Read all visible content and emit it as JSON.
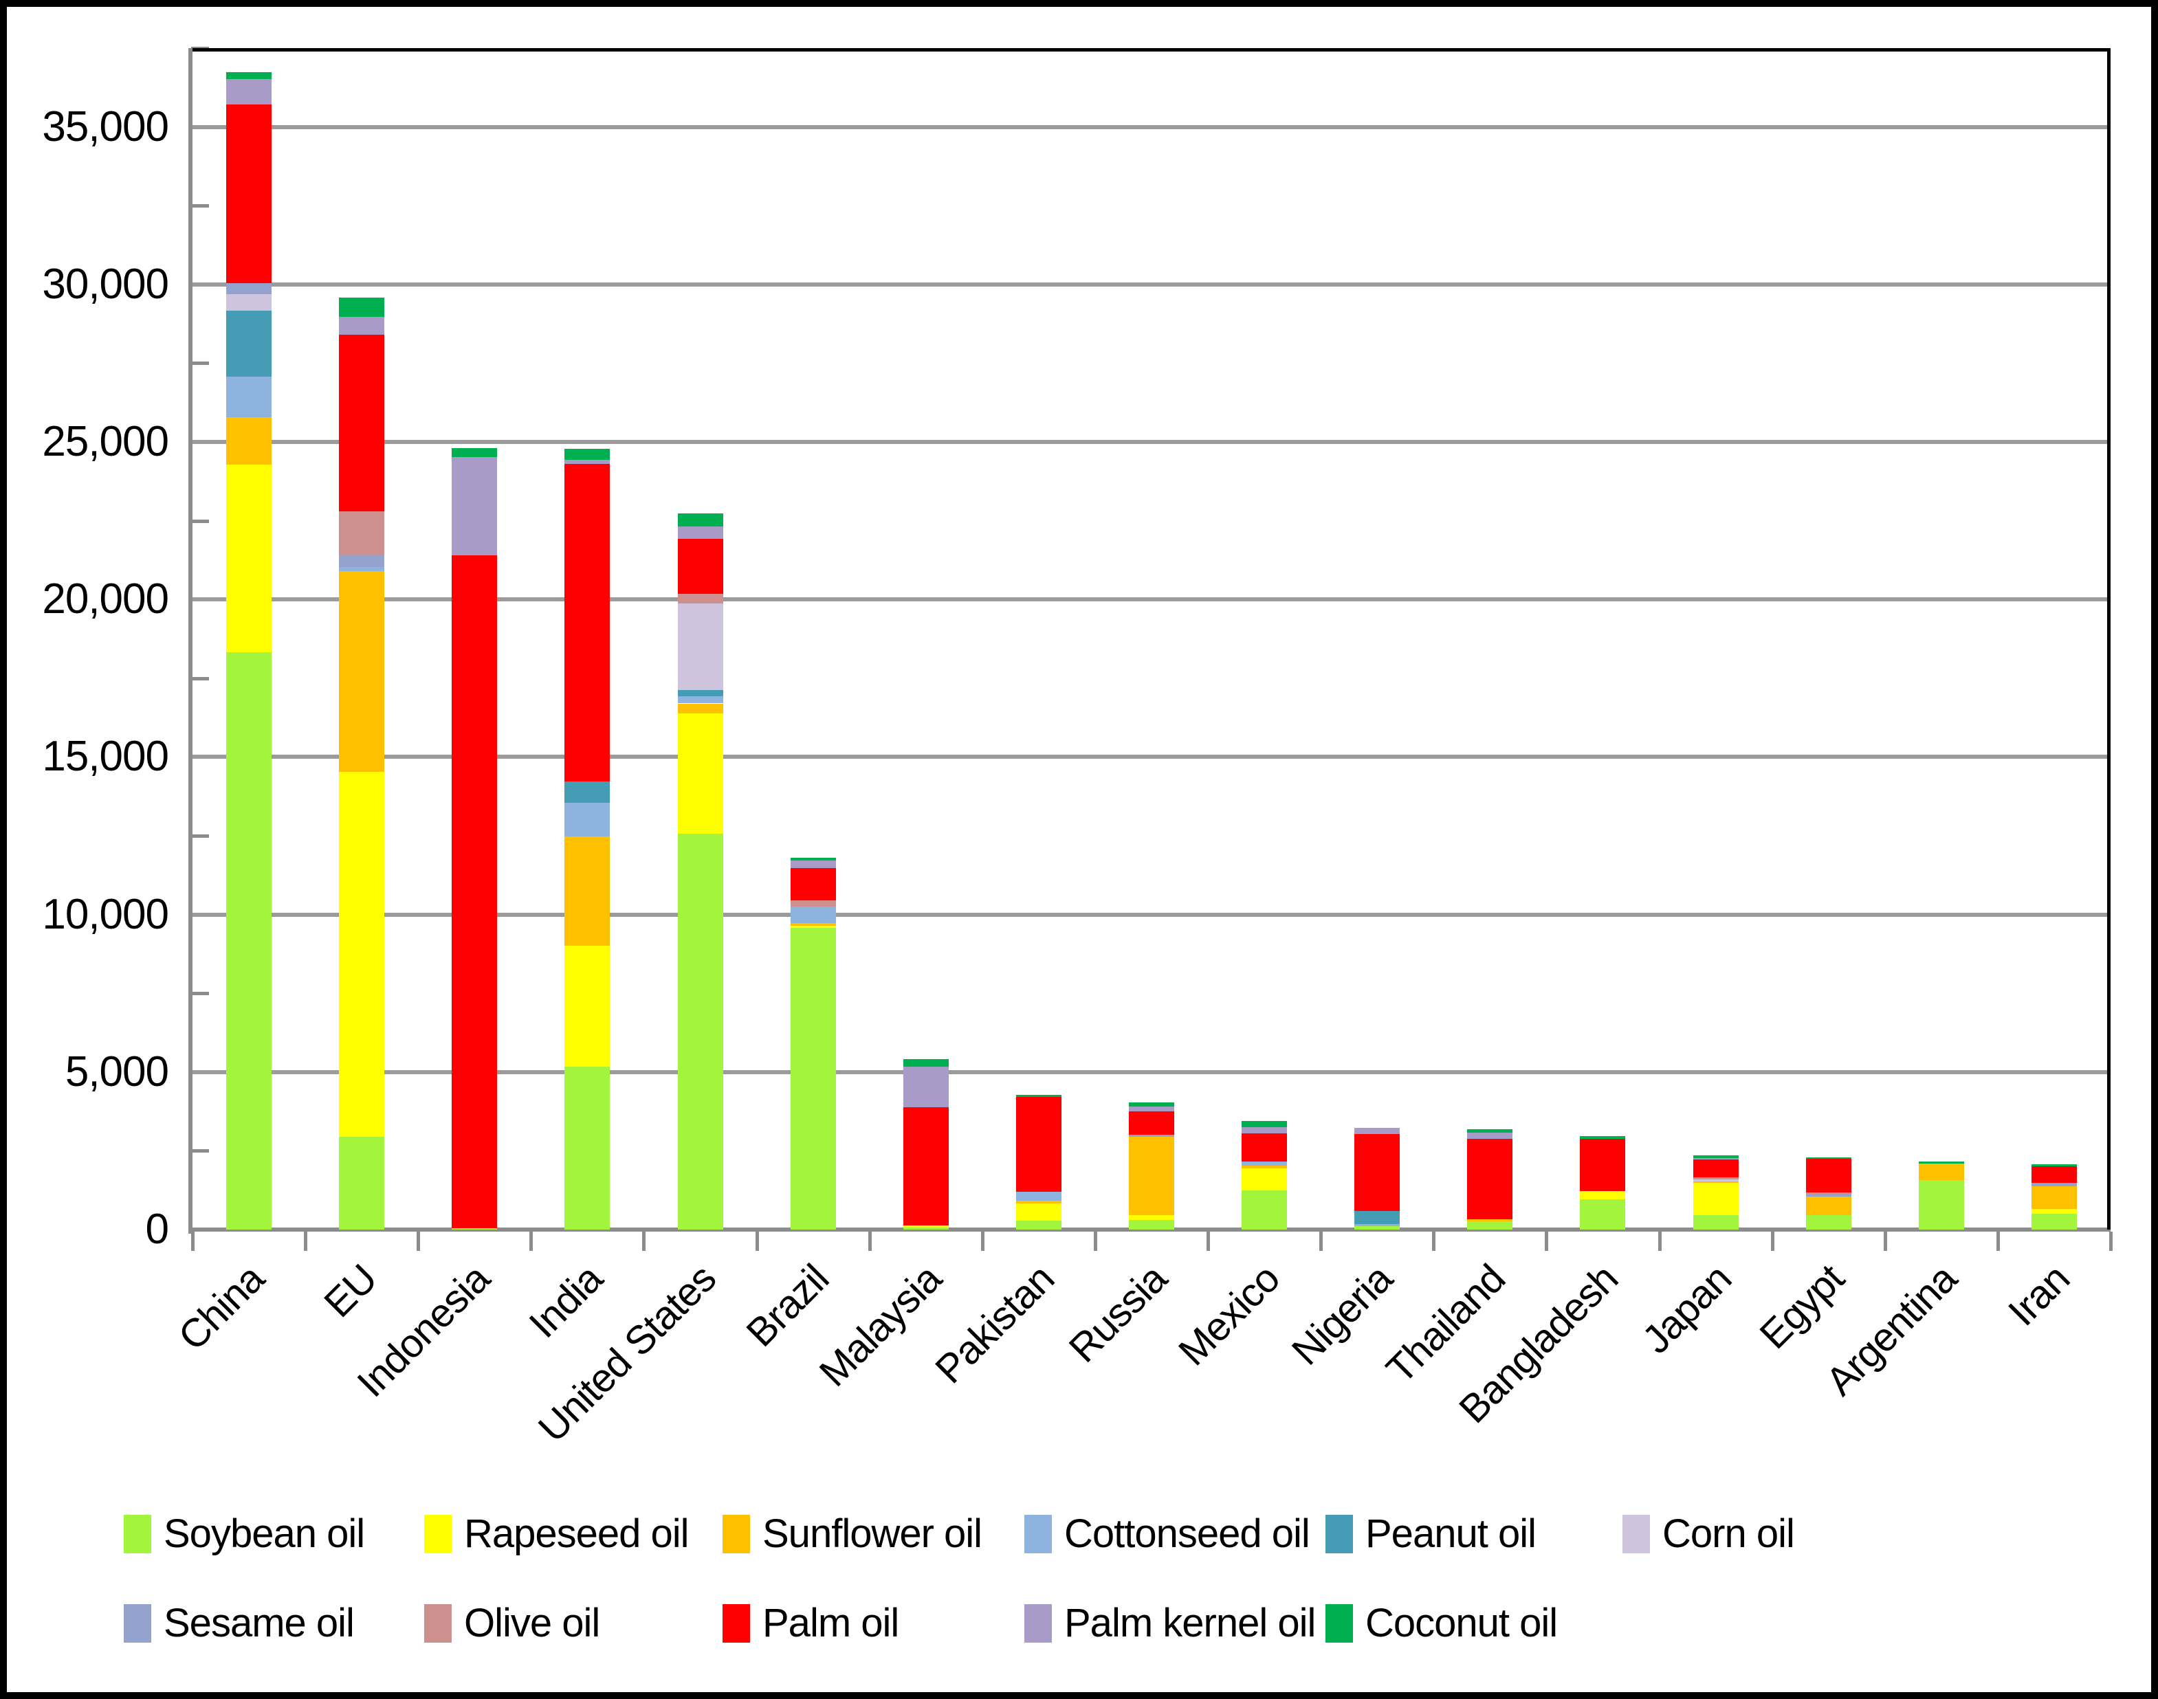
{
  "chart_data": {
    "type": "bar",
    "stacked": true,
    "title": "",
    "xlabel": "",
    "ylabel": "",
    "categories": [
      "China",
      "EU",
      "Indonesia",
      "India",
      "United States",
      "Brazil",
      "Malaysia",
      "Pakistan",
      "Russia",
      "Mexico",
      "Nigeria",
      "Thailand",
      "Bangladesh",
      "Japan",
      "Egypt",
      "Argentina",
      "Iran"
    ],
    "series": [
      {
        "name": "Soybean oil",
        "color": "#A2F43C",
        "values": [
          18330,
          2940,
          50,
          5160,
          12570,
          9580,
          70,
          290,
          310,
          1250,
          110,
          260,
          960,
          450,
          450,
          1580,
          495
        ]
      },
      {
        "name": "Rapeseed oil",
        "color": "#FFFF00",
        "values": [
          5940,
          11600,
          0,
          3860,
          3810,
          70,
          60,
          550,
          150,
          700,
          0,
          0,
          270,
          1030,
          0,
          0,
          150
        ]
      },
      {
        "name": "Sunflower oil",
        "color": "#FFC000",
        "values": [
          1520,
          6360,
          0,
          3460,
          320,
          70,
          0,
          70,
          2490,
          70,
          0,
          70,
          0,
          40,
          590,
          520,
          740
        ]
      },
      {
        "name": "Cottonseed oil",
        "color": "#8FB3DF",
        "values": [
          1290,
          120,
          0,
          1060,
          220,
          540,
          0,
          290,
          0,
          150,
          60,
          0,
          0,
          0,
          0,
          0,
          0
        ]
      },
      {
        "name": "Peanut oil",
        "color": "#449DB5",
        "values": [
          2080,
          0,
          0,
          680,
          200,
          0,
          0,
          0,
          0,
          0,
          410,
          0,
          0,
          0,
          0,
          0,
          0
        ]
      },
      {
        "name": "Corn oil",
        "color": "#CEC4DE",
        "values": [
          540,
          0,
          0,
          0,
          2760,
          0,
          0,
          0,
          0,
          0,
          0,
          0,
          0,
          80,
          0,
          0,
          0
        ]
      },
      {
        "name": "Sesame oil",
        "color": "#93A3CD",
        "values": [
          340,
          410,
          0,
          0,
          0,
          0,
          0,
          0,
          70,
          0,
          0,
          0,
          0,
          0,
          70,
          0,
          95
        ]
      },
      {
        "name": "Olive oil",
        "color": "#CE908F",
        "values": [
          0,
          1360,
          0,
          0,
          290,
          200,
          0,
          0,
          0,
          0,
          0,
          0,
          0,
          55,
          60,
          0,
          0
        ]
      },
      {
        "name": "Palm oil",
        "color": "#FF0000",
        "values": [
          5680,
          5610,
          21360,
          10080,
          1750,
          1010,
          3750,
          3000,
          740,
          890,
          2450,
          2540,
          1650,
          560,
          1070,
          0,
          520
        ]
      },
      {
        "name": "Palm kernel oil",
        "color": "#A89BC7",
        "values": [
          800,
          580,
          3100,
          140,
          390,
          250,
          1300,
          0,
          150,
          180,
          200,
          210,
          0,
          60,
          0,
          0,
          0
        ]
      },
      {
        "name": "Coconut oil",
        "color": "#00B050",
        "values": [
          220,
          600,
          300,
          350,
          420,
          90,
          220,
          80,
          120,
          200,
          0,
          95,
          90,
          80,
          60,
          70,
          75
        ]
      }
    ],
    "y_axis": {
      "min": 0,
      "max": 37500,
      "major_step": 5000,
      "minor_step": 2500,
      "tick_labels": [
        "0",
        "5,000",
        "10,000",
        "15,000",
        "20,000",
        "25,000",
        "30,000",
        "35,000"
      ],
      "gridlines": true,
      "gridline_color": "#9b9b9b"
    },
    "legend_position": "bottom",
    "legend_rows": [
      6,
      5
    ]
  }
}
